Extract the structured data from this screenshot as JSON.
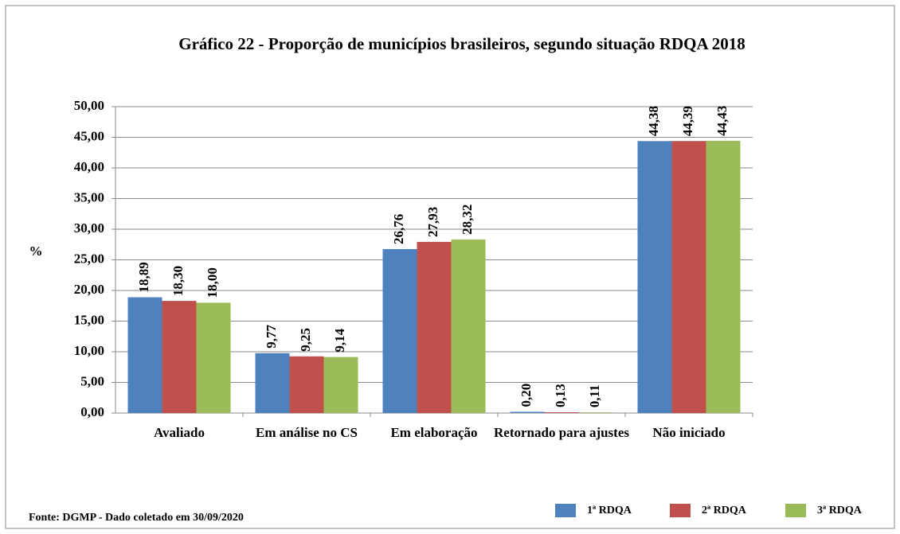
{
  "chart_data": {
    "type": "bar",
    "title": "Gráfico 22 - Proporção  de municípios brasileiros,   segundo situação RDQA 2018",
    "y_label": "%",
    "source": "Fonte: DGMP - Dado coletado em 30/09/2020",
    "categories": [
      "Avaliado",
      "Em análise no CS",
      "Em elaboração",
      "Retornado para ajustes",
      "Não iniciado"
    ],
    "series": [
      {
        "name": "1ª RDQA",
        "color": "#4f81bd",
        "values": [
          18.89,
          9.77,
          26.76,
          0.2,
          44.38
        ],
        "value_labels": [
          "18,89",
          "9,77",
          "26,76",
          "0,20",
          "44,38"
        ]
      },
      {
        "name": "2ª RDQA",
        "color": "#c0504d",
        "values": [
          18.3,
          9.25,
          27.93,
          0.13,
          44.39
        ],
        "value_labels": [
          "18,30",
          "9,25",
          "27,93",
          "0,13",
          "44,39"
        ]
      },
      {
        "name": "3ª RDQA",
        "color": "#9bbb59",
        "values": [
          18.0,
          9.14,
          28.32,
          0.11,
          44.43
        ],
        "value_labels": [
          "18,00",
          "9,14",
          "28,32",
          "0,11",
          "44,43"
        ]
      }
    ],
    "ylim": [
      0,
      50
    ],
    "yticks": [
      {
        "value": 0,
        "label": "0,00"
      },
      {
        "value": 5,
        "label": "5,00"
      },
      {
        "value": 10,
        "label": "10,00"
      },
      {
        "value": 15,
        "label": "15,00"
      },
      {
        "value": 20,
        "label": "20,00"
      },
      {
        "value": 25,
        "label": "25,00"
      },
      {
        "value": 30,
        "label": "30,00"
      },
      {
        "value": 35,
        "label": "35,00"
      },
      {
        "value": 40,
        "label": "40,00"
      },
      {
        "value": 45,
        "label": "45,00"
      },
      {
        "value": 50,
        "label": "50,00"
      }
    ],
    "grid": true,
    "legend": "bottom-right"
  }
}
